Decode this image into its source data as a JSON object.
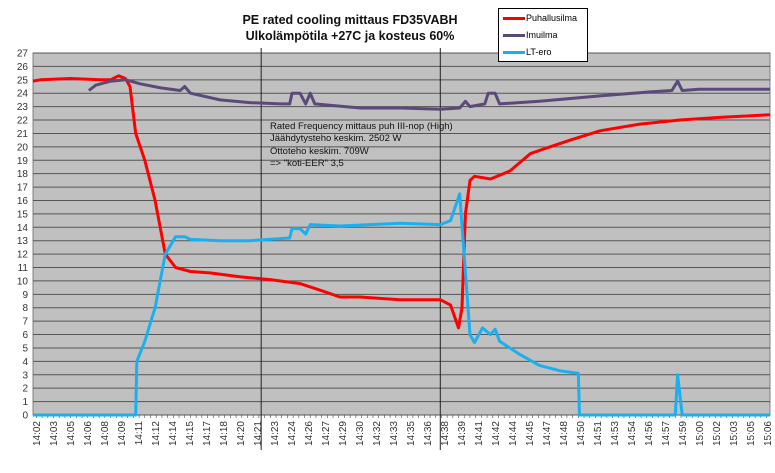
{
  "chart_data": {
    "type": "line",
    "title": [
      "PE rated cooling mittaus FD35VABH",
      "Ulkolämpötila +27C ja kosteus 60%"
    ],
    "xlabel": "",
    "ylabel": "",
    "ylim": [
      0,
      27
    ],
    "yticks": [
      0,
      1,
      2,
      3,
      4,
      5,
      6,
      7,
      8,
      9,
      10,
      11,
      12,
      13,
      14,
      15,
      16,
      17,
      18,
      19,
      20,
      21,
      22,
      23,
      24,
      25,
      26,
      27
    ],
    "x_unit": "minutes after 14:02",
    "xlim": [
      -0.3,
      64.3
    ],
    "xtick_labels": [
      "14:02",
      "14:03",
      "14:05",
      "14:06",
      "14:08",
      "14:09",
      "14:11",
      "14:12",
      "14:14",
      "14:15",
      "14:17",
      "14:18",
      "14:20",
      "14:21",
      "14:23",
      "14:24",
      "14:26",
      "14:27",
      "14:29",
      "14:30",
      "14:32",
      "14:33",
      "14:35",
      "14:36",
      "14:38",
      "14:39",
      "14:41",
      "14:42",
      "14:44",
      "14:45",
      "14:47",
      "14:48",
      "14:50",
      "14:51",
      "14:53",
      "14:54",
      "14:56",
      "14:57",
      "14:59",
      "15:00",
      "15:02",
      "15:03",
      "15:05",
      "15:06"
    ],
    "grid": true,
    "background": "#c0c0c0",
    "legend_position": "top-right",
    "marker_lines_x": [
      19.7,
      35.4
    ],
    "annotation": [
      "Rated Frequency mittaus puh III-nop (High)",
      "Jäähdytysteho  keskim. 2502 W",
      "Ottoteho keskim. 709W",
      "=> \"koti-EER\" 3,5"
    ],
    "series": [
      {
        "name": "Puhallusilma",
        "color": "#ff0000",
        "x": [
          -0.3,
          0.35,
          3.0,
          5.6,
          6.5,
          7.2,
          7.8,
          8.2,
          8.7,
          9.5,
          10.4,
          11.3,
          12.2,
          13.5,
          15.2,
          17.9,
          20.5,
          23.1,
          24.9,
          26.6,
          28.4,
          30.1,
          31.9,
          35.4,
          36.3,
          37.0,
          37.3,
          37.6,
          38.0,
          38.4,
          39.8,
          41.5,
          43.3,
          45.0,
          46.8,
          49.4,
          52.9,
          56.4,
          59.9,
          64.3
        ],
        "y": [
          24.9,
          25,
          25.1,
          25,
          25,
          25.3,
          25.1,
          24.5,
          21,
          19,
          16,
          12,
          11,
          10.7,
          10.6,
          10.3,
          10.1,
          9.8,
          9.3,
          8.8,
          8.8,
          8.7,
          8.6,
          8.6,
          8.2,
          6.5,
          8,
          15,
          17.5,
          17.8,
          17.6,
          18.2,
          19.5,
          20,
          20.5,
          21.2,
          21.7,
          22,
          22.2,
          22.4
        ]
      },
      {
        "name": "Imuilma",
        "color": "#5a4a7a",
        "x": [
          4.6,
          5.2,
          6.5,
          7.8,
          9.1,
          10.9,
          12.6,
          13.0,
          13.5,
          16.1,
          18.7,
          21.4,
          22.2,
          22.4,
          23.1,
          23.6,
          24.0,
          24.4,
          25.7,
          28.4,
          31.9,
          35.4,
          37.1,
          37.6,
          38.0,
          39.3,
          39.6,
          40.2,
          40.6,
          44.1,
          49.4,
          53.8,
          55.7,
          56.2,
          56.6,
          58.1,
          64.3
        ],
        "y": [
          24.2,
          24.6,
          24.9,
          25,
          24.7,
          24.4,
          24.2,
          24.5,
          24,
          23.5,
          23.3,
          23.2,
          23.2,
          24,
          24,
          23.2,
          24,
          23.2,
          23.1,
          22.9,
          22.9,
          22.8,
          22.9,
          23.4,
          23,
          23.2,
          24,
          24,
          23.2,
          23.4,
          23.8,
          24.1,
          24.2,
          24.9,
          24.2,
          24.3,
          24.3
        ]
      },
      {
        "name": "LT-ero",
        "color": "#1ab0f0",
        "x": [
          -0.3,
          8.7,
          8.8,
          9.5,
          10.4,
          11.3,
          12.2,
          13.0,
          13.5,
          16.1,
          18.7,
          22.2,
          22.4,
          23.1,
          23.6,
          24.0,
          26.6,
          29.2,
          31.9,
          35.4,
          36.3,
          37.1,
          37.4,
          38.0,
          38.4,
          39.1,
          39.8,
          40.2,
          40.6,
          42.4,
          44.1,
          45.9,
          47.5,
          47.6,
          56.0,
          56.2,
          56.6,
          64.3
        ],
        "y": [
          0,
          0,
          4,
          5.5,
          8,
          12,
          13.3,
          13.3,
          13.1,
          13,
          13,
          13.2,
          13.9,
          13.9,
          13.5,
          14.2,
          14.1,
          14.2,
          14.3,
          14.2,
          14.5,
          16.5,
          13,
          6,
          5.4,
          6.5,
          6,
          6.4,
          5.5,
          4.5,
          3.7,
          3.3,
          3.1,
          0,
          0,
          3,
          0,
          0
        ]
      }
    ]
  }
}
